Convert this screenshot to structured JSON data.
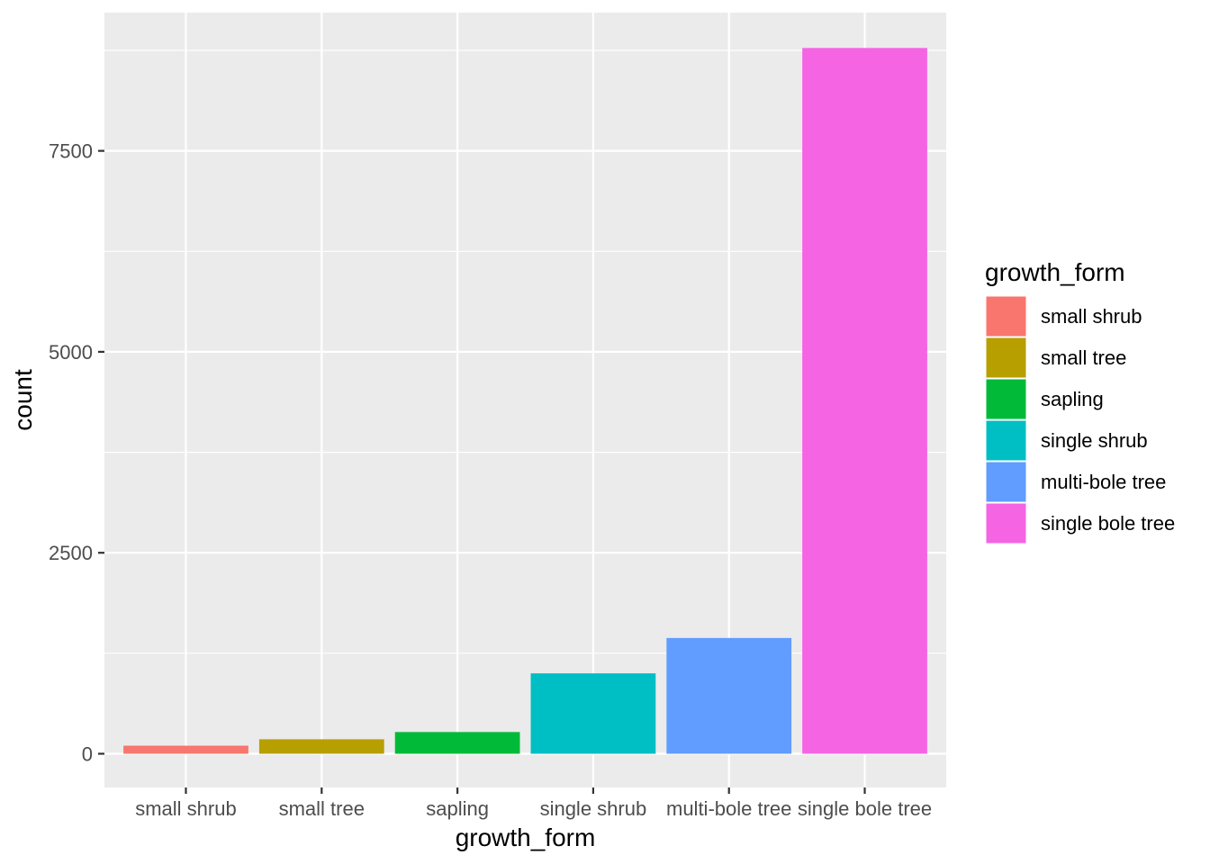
{
  "chart_data": {
    "type": "bar",
    "title": "",
    "xlabel": "growth_form",
    "ylabel": "count",
    "categories": [
      "small shrub",
      "small tree",
      "sapling",
      "single shrub",
      "multi-bole tree",
      "single bole tree"
    ],
    "values": [
      100,
      180,
      270,
      1000,
      1440,
      8780
    ],
    "colors": [
      "#F8766D",
      "#B79F00",
      "#00BA38",
      "#00BFC4",
      "#619CFF",
      "#F564E3"
    ],
    "ylim": [
      -420,
      9220
    ],
    "yticks": [
      0,
      2500,
      5000,
      7500
    ],
    "ytick_labels": [
      "0",
      "2500",
      "5000",
      "7500"
    ],
    "grid": true,
    "panel_background": "#EBEBEB",
    "gridline_color": "#FFFFFF",
    "legend": {
      "title": "growth_form",
      "placement": "right",
      "items": [
        "small shrub",
        "small tree",
        "sapling",
        "single shrub",
        "multi-bole tree",
        "single bole tree"
      ]
    }
  }
}
